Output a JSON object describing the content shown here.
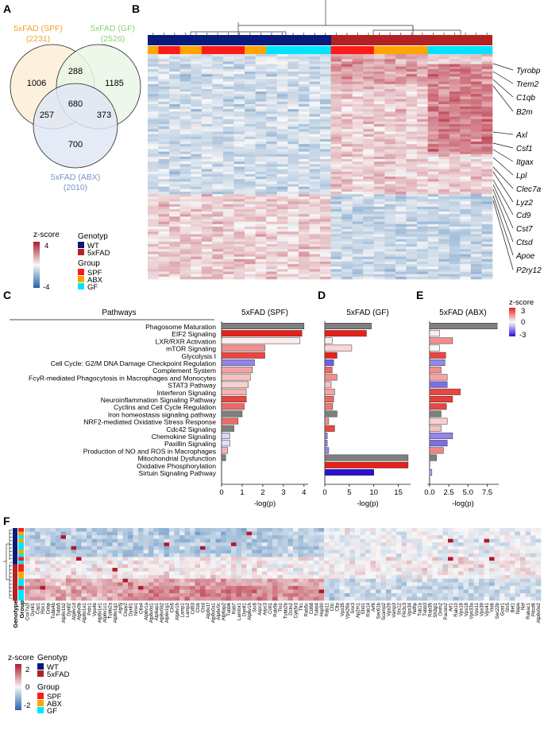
{
  "panels": {
    "a": "A",
    "b": "B",
    "c": "C",
    "d": "D",
    "e": "E",
    "f": "F"
  },
  "venn": {
    "sets": [
      {
        "name": "5xFAD (SPF)",
        "count": "(2231)",
        "color": "#f0a232",
        "fill": "#fdf0dc"
      },
      {
        "name": "5xFAD (GF)",
        "count": "(2526)",
        "color": "#8ccf7a",
        "fill": "#eaf6e6"
      },
      {
        "name": "5xFAD (ABX)",
        "count": "(2010)",
        "color": "#7a93c8",
        "fill": "#dfe6f5"
      }
    ],
    "regions": {
      "spf_only": "1006",
      "gf_only": "1185",
      "abx_only": "700",
      "spf_gf": "288",
      "spf_abx": "257",
      "gf_abx": "373",
      "all": "680"
    }
  },
  "heatmap_b": {
    "genes": [
      "Tyrobp",
      "Trem2",
      "C1qb",
      "B2m",
      "Axl",
      "Csf1",
      "Itgax",
      "Lpl",
      "Clec7a",
      "Lyz2",
      "Cd9",
      "Cst7",
      "Ctsd",
      "Apoe",
      "P2ry12"
    ]
  },
  "legend_ab": {
    "zscore_title": "z-score",
    "zmax": "4",
    "zmin": "-4",
    "genotype_title": "Genotyp",
    "genotype": [
      {
        "label": "WT",
        "color": "#0a1a7a"
      },
      {
        "label": "5xFAD",
        "color": "#b22222"
      }
    ],
    "group_title": "Group",
    "group": [
      {
        "label": "SPF",
        "color": "#ff1a1a"
      },
      {
        "label": "ABX",
        "color": "#ffa500"
      },
      {
        "label": "GF",
        "color": "#00e5ff"
      }
    ]
  },
  "pathways_header": "Pathways",
  "legend_ce": {
    "title": "z-score",
    "max": "3",
    "mid": "0",
    "min": "-3"
  },
  "chart_data": [
    {
      "type": "bar",
      "orientation": "horizontal",
      "title": "5xFAD (SPF)",
      "xlabel": "-log(p)",
      "xlim": [
        0,
        4.2
      ],
      "xticks": [
        "0",
        "1",
        "2",
        "3",
        "4"
      ],
      "categories": [
        "Phagosome Maturation",
        "EIF2 Signaling",
        "LXR/RXR Activation",
        "mTOR Signaling",
        "Glycolysis I",
        "Cell Cycle: G2/M DNA Damage Checkpoint Regulation",
        "Complement System",
        "FcγR-mediated Phagocytosis in Macrophages and Monocytes",
        "STAT3 Pathway",
        "Interferon Signaling",
        "Neuroinflammation Signaling Pathway",
        "Cyclins and Cell Cycle Regulation",
        "Iron homeostasis signaling pathway",
        "NRF2-mediated Oxidative Stress Response",
        "Cdc42 Signaling",
        "Chemokine Signaling",
        "Paxillin Signaling",
        "Production of NO and ROS in Macrophages",
        "Mitochondrial Dysfunction",
        "Oxidative Phosphorylation",
        "Sirtuin Signaling Pathway"
      ],
      "values": [
        4.0,
        3.9,
        3.8,
        2.1,
        2.1,
        1.6,
        1.5,
        1.4,
        1.3,
        1.2,
        1.2,
        1.1,
        1.0,
        0.8,
        0.6,
        0.4,
        0.4,
        0.3,
        0.2,
        0.0,
        0.0
      ],
      "zscores": [
        null,
        3,
        0.2,
        1.5,
        2.5,
        -1.5,
        1.2,
        0.8,
        0.6,
        1.0,
        2.5,
        2.0,
        null,
        2.0,
        null,
        -0.5,
        -0.4,
        1.0,
        null,
        null,
        null
      ]
    },
    {
      "type": "bar",
      "orientation": "horizontal",
      "title": "5xFAD (GF)",
      "xlabel": "-log(p)",
      "xlim": [
        0,
        17.5
      ],
      "xticks": [
        "0",
        "5",
        "10",
        "15"
      ],
      "values": [
        9.5,
        8.5,
        1.5,
        5.5,
        2.5,
        1.8,
        1.5,
        2.5,
        1.3,
        2.0,
        1.8,
        1.6,
        2.5,
        0.8,
        2.0,
        0.5,
        0.5,
        0.8,
        17.0,
        17.0,
        10.0
      ],
      "zscores": [
        null,
        3,
        0.2,
        0.5,
        3,
        -2,
        2,
        1.5,
        0.8,
        1.2,
        2,
        1.8,
        null,
        1.5,
        2.5,
        -1.5,
        -1.5,
        -1.5,
        null,
        3,
        -3
      ]
    },
    {
      "type": "bar",
      "orientation": "horizontal",
      "title": "5xFAD (ABX)",
      "xlabel": "-log(p)",
      "xlim": [
        -0.3,
        9.0
      ],
      "xticks": [
        "0.0",
        "2.5",
        "5.0",
        "7.5"
      ],
      "values": [
        8.8,
        1.3,
        3.0,
        1.3,
        2.1,
        2.0,
        1.5,
        2.3,
        2.3,
        4.0,
        3.0,
        2.2,
        1.5,
        2.3,
        1.5,
        3.0,
        2.3,
        1.8,
        0.9,
        0.0,
        0.3
      ],
      "zscores": [
        null,
        0.2,
        1.5,
        0.1,
        2.5,
        -1.5,
        1.5,
        1.2,
        -1.8,
        2.5,
        2.6,
        2.5,
        null,
        0.6,
        0.8,
        -1.5,
        -1.8,
        1.6,
        null,
        null,
        -1
      ]
    }
  ],
  "heatmap_f": {
    "row_label_genotype": "Genotype",
    "row_label_group": "Group",
    "genes": [
      "Cox7a2l",
      "Dynll1",
      "Cap1",
      "Rbx1",
      "Cnbp",
      "Tubb4b",
      "Tubb5",
      "Atp6v1b2",
      "Dynll2",
      "Atp6v1d",
      "Atp6v0b",
      "Atp6v1e1",
      "Prdx1",
      "Vps4b",
      "Atp6v1e1",
      "Atp6v1c1",
      "Tubb2a",
      "Atp6v1g1",
      "Atp5j",
      "Cnpy2",
      "Dynll1",
      "Nme1",
      "Ctla4",
      "Atp6v1a",
      "Atp6v0d1",
      "Atp6ap1",
      "Atp6v0d2",
      "Atp6v1g1",
      "Cln5",
      "Atp6v1h",
      "Lamp1",
      "Lamp2",
      "Cd63",
      "Ctsb",
      "Ctsd",
      "Atp6v1f",
      "Atp6v0a1",
      "Atp6v0c",
      "Atp6ap2",
      "Tubb6",
      "Rab7",
      "Lamtor1",
      "Dynlt1",
      "Atp6v1h",
      "Stx8",
      "Arpc2",
      "Arpc3",
      "Cotl1",
      "Rab5b",
      "Tln1",
      "Tubb2b",
      "Dctn2",
      "Cyb5r3",
      "Tfrc",
      "Rab5c",
      "Cd68",
      "Tubb4",
      "Hsp90",
      "Rab11",
      "Cltc",
      "Clta",
      "Vps35",
      "Vps26a",
      "Snx3",
      "Ap2m1",
      "Ehd1",
      "Rab14",
      "Arf6",
      "Sec61b",
      "Scamp2",
      "Vps29",
      "Vamp3",
      "Stx12",
      "Pik3c3",
      "Vps34",
      "Ndfip",
      "Tub1a",
      "Tubb3",
      "Rab35",
      "Sh3gl1",
      "Dnm2",
      "Pacsin2",
      "Arf1",
      "Rab10",
      "Vps16",
      "Vps18",
      "Vps33a",
      "Vps11",
      "Vps39",
      "Vps41",
      "Ykt6",
      "Sec22b",
      "Gosr1",
      "Stx5",
      "Bet1",
      "Napa",
      "Nsf",
      "Rabac1",
      "Pdcd6",
      "Atp6v0e2"
    ]
  },
  "legend_f": {
    "zscore_title": "z-score",
    "zmax": "2",
    "zmid": "0",
    "zmin": "-2",
    "genotype_title": "Genotyp",
    "genotype": [
      {
        "label": "WT",
        "color": "#0a1a7a"
      },
      {
        "label": "5xFAD",
        "color": "#b22222"
      }
    ],
    "group_title": "Group",
    "group": [
      {
        "label": "SPF",
        "color": "#ff1a1a"
      },
      {
        "label": "ABX",
        "color": "#ffa500"
      },
      {
        "label": "GF",
        "color": "#00e5ff"
      }
    ]
  }
}
